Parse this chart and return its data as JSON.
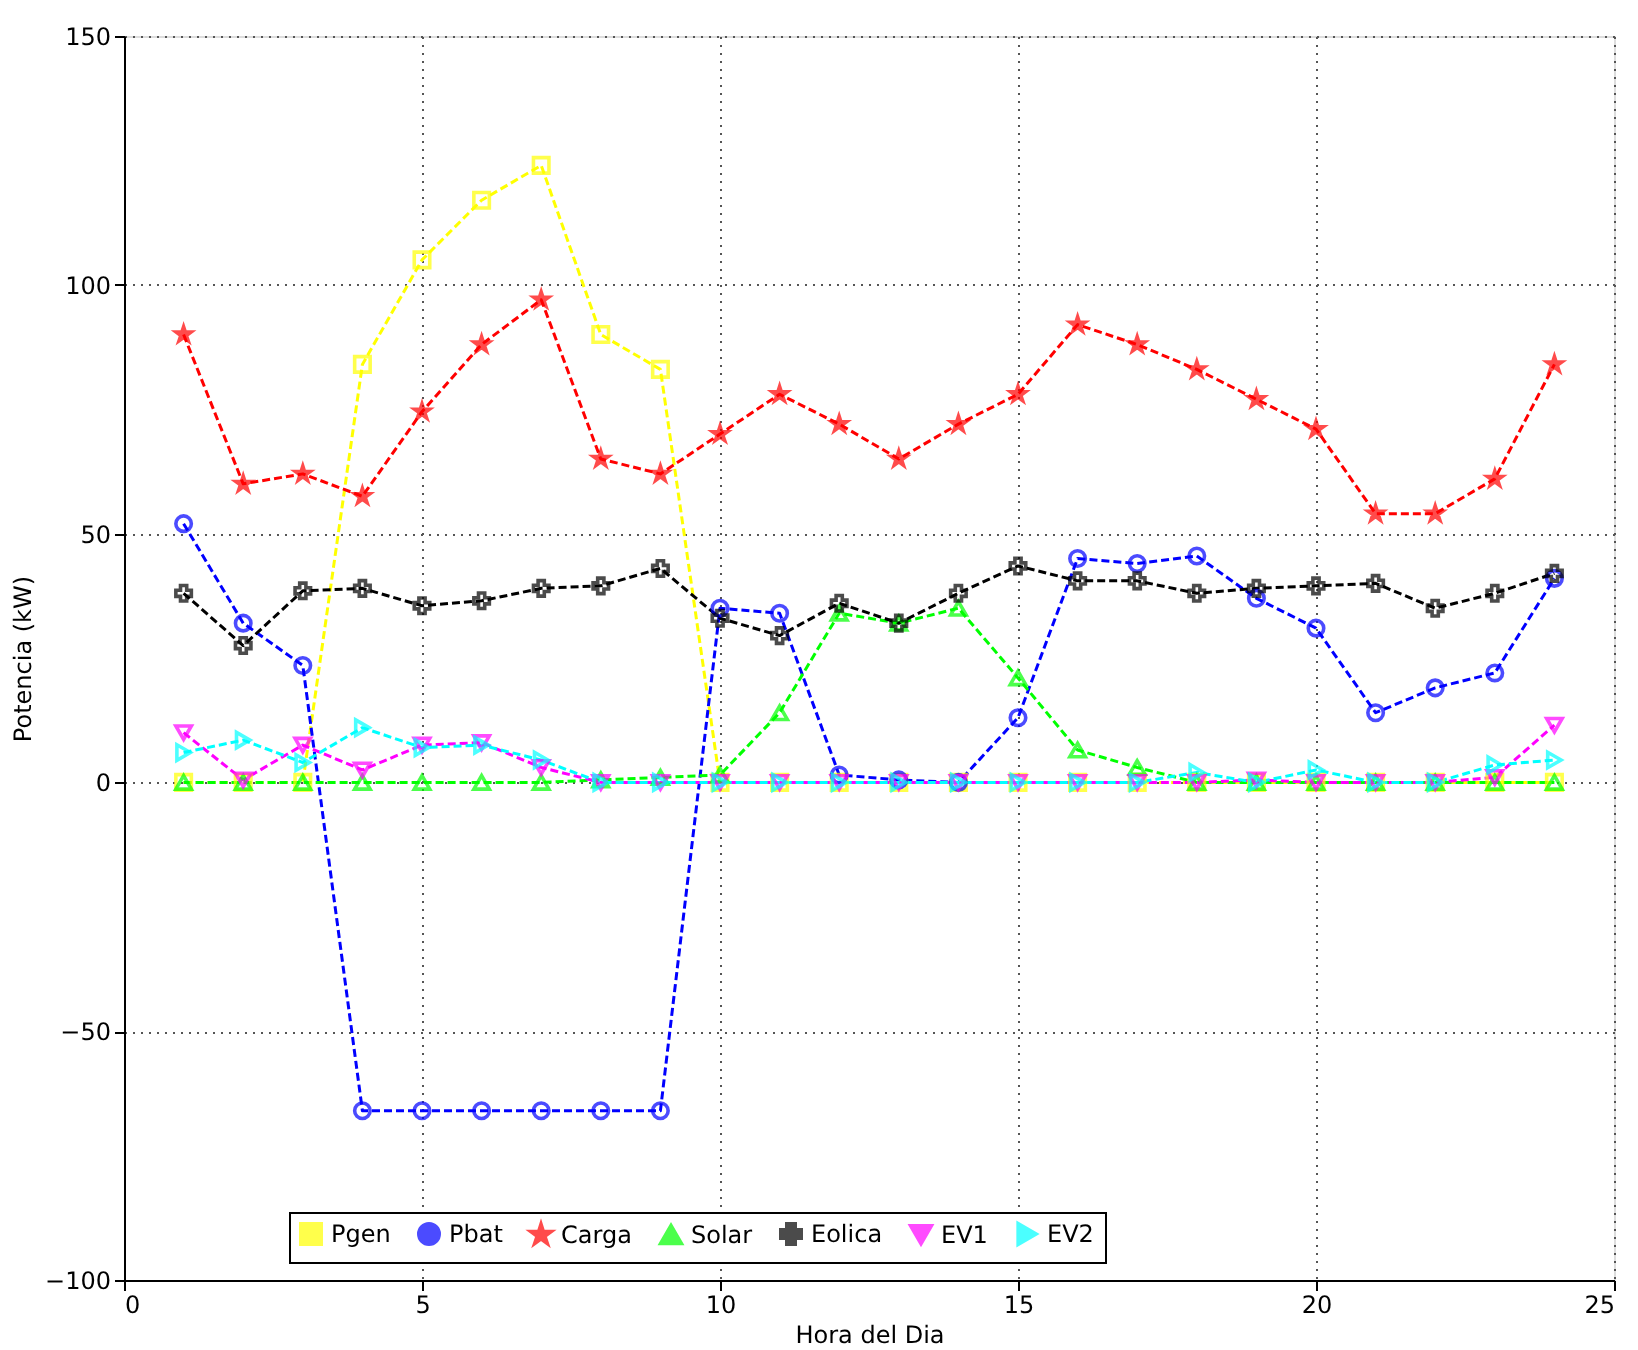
{
  "chart_data": {
    "type": "line",
    "xlabel": "Hora del Dia",
    "ylabel": "Potencia (kW)",
    "x": [
      1,
      2,
      3,
      4,
      5,
      6,
      7,
      8,
      9,
      10,
      11,
      12,
      13,
      14,
      15,
      16,
      17,
      18,
      19,
      20,
      21,
      22,
      23,
      24
    ],
    "xlim": [
      0,
      25
    ],
    "xticks": [
      0,
      5,
      10,
      15,
      20,
      25
    ],
    "ylim": [
      -100,
      150
    ],
    "yticks": [
      -100,
      -50,
      0,
      50,
      100,
      150
    ],
    "grid": true,
    "legend": "bottom",
    "line_style": "dashed",
    "series": [
      {
        "name": "Pgen",
        "color": "#ffff00",
        "marker": "square",
        "values": [
          0,
          0,
          0,
          84,
          105,
          117,
          124,
          90,
          83,
          0,
          0,
          0,
          0,
          0,
          0,
          0,
          0,
          0,
          0,
          0,
          0,
          0,
          0,
          0
        ]
      },
      {
        "name": "Pbat",
        "color": "#0000ff",
        "marker": "circle",
        "values": [
          52,
          32,
          23.5,
          -66,
          -66,
          -66,
          -66,
          -66,
          -66,
          35,
          34,
          1.5,
          0.5,
          0,
          13,
          45,
          44,
          45.5,
          37,
          31,
          14,
          19,
          22,
          41
        ]
      },
      {
        "name": "Carga",
        "color": "#ff0000",
        "marker": "star",
        "values": [
          90,
          60,
          62,
          57.5,
          74.5,
          88,
          97,
          65,
          62,
          70,
          78,
          72,
          65,
          72,
          78,
          92,
          88,
          83,
          77,
          71,
          54,
          54,
          61,
          84
        ]
      },
      {
        "name": "Solar",
        "color": "#00ff00",
        "marker": "triangle",
        "values": [
          0,
          0,
          0,
          0,
          0,
          0,
          0,
          0.5,
          1,
          1.5,
          14,
          34,
          32,
          35,
          21,
          6.5,
          3,
          0,
          0,
          0,
          0,
          0,
          0,
          0
        ]
      },
      {
        "name": "Eolica",
        "color": "#000000",
        "marker": "cross",
        "values": [
          38,
          27.5,
          38.5,
          39,
          35.5,
          36.5,
          39,
          39.5,
          43,
          33,
          29.5,
          36,
          32,
          38,
          43.5,
          40.5,
          40.5,
          38,
          39,
          39.5,
          40,
          35,
          38,
          42
        ]
      },
      {
        "name": "EV1",
        "color": "#ff00ff",
        "marker": "triangle-down",
        "values": [
          10,
          0.5,
          7.5,
          2.5,
          7.5,
          8,
          3,
          0,
          0,
          0,
          0,
          0,
          0,
          0,
          0,
          0,
          0,
          0,
          0.5,
          0,
          0,
          0,
          1,
          11.5
        ]
      },
      {
        "name": "EV2",
        "color": "#00ffff",
        "marker": "triangle-right",
        "values": [
          6,
          8.5,
          4,
          11,
          7,
          7.5,
          4.5,
          0,
          0,
          0,
          0,
          0,
          0,
          0,
          0,
          0,
          0,
          2,
          0,
          2.5,
          0,
          0,
          3.5,
          4.5
        ]
      }
    ]
  }
}
